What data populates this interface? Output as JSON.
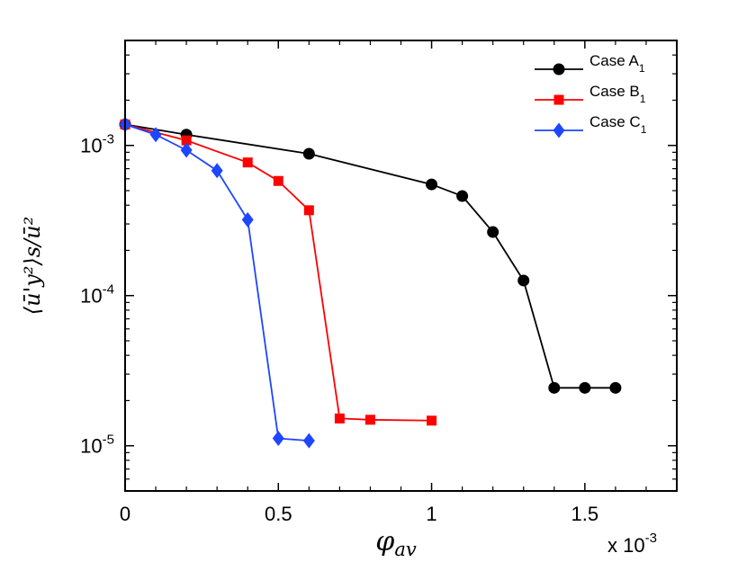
{
  "chart_data": {
    "type": "line",
    "title": "",
    "xlabel": {
      "base": "φ",
      "sub": "av"
    },
    "ylabel": {
      "text": "⟨ū'y²⟩s/ū²"
    },
    "x_scale_note": {
      "prefix": "x 10",
      "exponent": "-3"
    },
    "xlim": [
      0,
      1.8
    ],
    "ylim": [
      5e-06,
      0.005
    ],
    "yscale": "log",
    "xticks": [
      {
        "v": 0,
        "label": "0"
      },
      {
        "v": 0.5,
        "label": "0.5"
      },
      {
        "v": 1,
        "label": "1"
      },
      {
        "v": 1.5,
        "label": "1.5"
      }
    ],
    "yticks": [
      {
        "v": 1e-05,
        "base": "10",
        "exp": "-5"
      },
      {
        "v": 0.0001,
        "base": "10",
        "exp": "-4"
      },
      {
        "v": 0.001,
        "base": "10",
        "exp": "-3"
      }
    ],
    "legend_position": "top-right",
    "series": [
      {
        "name": "Case A",
        "name_sub": "1",
        "color": "#000000",
        "marker": "circle",
        "x": [
          0,
          0.2,
          0.6,
          1.0,
          1.1,
          1.2,
          1.3,
          1.4,
          1.5,
          1.6
        ],
        "y": [
          0.00138,
          0.00118,
          0.00088,
          0.00055,
          0.00046,
          0.000265,
          0.000126,
          2.43e-05,
          2.43e-05,
          2.43e-05
        ]
      },
      {
        "name": "Case B",
        "name_sub": "1",
        "color": "#ff0000",
        "marker": "square",
        "x": [
          0,
          0.2,
          0.4,
          0.5,
          0.6,
          0.7,
          0.8,
          1.0
        ],
        "y": [
          0.00138,
          0.00108,
          0.00077,
          0.00058,
          0.00037,
          1.52e-05,
          1.49e-05,
          1.47e-05
        ]
      },
      {
        "name": "Case C",
        "name_sub": "1",
        "color": "#1e46ff",
        "marker": "diamond",
        "x": [
          0,
          0.1,
          0.2,
          0.3,
          0.4,
          0.5,
          0.6
        ],
        "y": [
          0.00138,
          0.00118,
          0.00093,
          0.00068,
          0.00032,
          1.12e-05,
          1.08e-05
        ]
      }
    ]
  }
}
